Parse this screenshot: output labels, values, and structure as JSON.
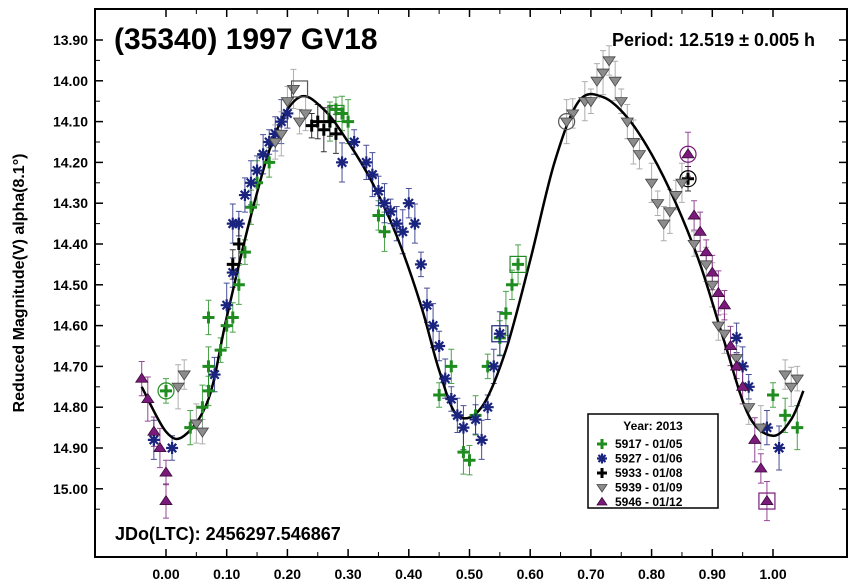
{
  "chart_data": {
    "type": "scatter",
    "title": "(35340) 1997 GV18",
    "period_label": "Period: 12.519 ± 0.005 h",
    "epoch_label": "JDo(LTC): 2456297.546867",
    "ylabel": "Reduced Magnitude(V) alpha(8.1°)",
    "xlabel": "",
    "xlim": [
      -0.05,
      1.06
    ],
    "ylim": [
      15.1,
      13.85
    ],
    "y_inverted": true,
    "grid": false,
    "legend_position": "bottom-right",
    "x_ticks": [
      "0.00",
      "0.10",
      "0.20",
      "0.30",
      "0.40",
      "0.50",
      "0.60",
      "0.70",
      "0.80",
      "0.90",
      "1.00"
    ],
    "y_ticks": [
      "13.90",
      "14.00",
      "14.10",
      "14.20",
      "14.30",
      "14.40",
      "14.50",
      "14.60",
      "14.70",
      "14.80",
      "14.90",
      "15.00"
    ],
    "legend": {
      "title": "Year: 2013",
      "entries": [
        {
          "label": "5917 - 01/05",
          "marker": "plus",
          "color": "#1e8c1e"
        },
        {
          "label": "5927 - 01/06",
          "marker": "asterisk",
          "color": "#1a237e"
        },
        {
          "label": "5933 - 01/08",
          "marker": "plus",
          "color": "#000000"
        },
        {
          "label": "5939 - 01/09",
          "marker": "triangle-down",
          "color": "#8c8c8c"
        },
        {
          "label": "5946 - 01/12",
          "marker": "triangle-up",
          "color": "#7a1a7a"
        }
      ]
    },
    "fit_curve": {
      "x": [
        -0.04,
        0.0,
        0.03,
        0.07,
        0.1,
        0.14,
        0.18,
        0.22,
        0.26,
        0.3,
        0.34,
        0.38,
        0.42,
        0.45,
        0.48,
        0.52,
        0.56,
        0.6,
        0.64,
        0.68,
        0.72,
        0.76,
        0.8,
        0.84,
        0.88,
        0.92,
        0.96,
        1.0,
        1.03,
        1.05
      ],
      "y": [
        14.75,
        14.86,
        14.87,
        14.78,
        14.58,
        14.33,
        14.13,
        14.04,
        14.07,
        14.15,
        14.25,
        14.38,
        14.55,
        14.71,
        14.82,
        14.8,
        14.66,
        14.44,
        14.2,
        14.05,
        14.04,
        14.09,
        14.18,
        14.3,
        14.45,
        14.64,
        14.82,
        14.87,
        14.83,
        14.76
      ]
    },
    "series": [
      {
        "name": "5917 - 01/05",
        "points": [
          {
            "x": 0.0,
            "y": 14.76
          },
          {
            "x": 0.04,
            "y": 14.85
          },
          {
            "x": 0.06,
            "y": 14.8
          },
          {
            "x": 0.07,
            "y": 14.76
          },
          {
            "x": 0.07,
            "y": 14.7
          },
          {
            "x": 0.09,
            "y": 14.66
          },
          {
            "x": 0.07,
            "y": 14.58
          },
          {
            "x": 0.1,
            "y": 14.6
          },
          {
            "x": 0.11,
            "y": 14.58
          },
          {
            "x": 0.12,
            "y": 14.5
          },
          {
            "x": 0.13,
            "y": 14.42
          },
          {
            "x": 0.14,
            "y": 14.31
          },
          {
            "x": 0.15,
            "y": 14.25
          },
          {
            "x": 0.17,
            "y": 14.2
          },
          {
            "x": 0.27,
            "y": 14.1
          },
          {
            "x": 0.28,
            "y": 14.07
          },
          {
            "x": 0.29,
            "y": 14.08
          },
          {
            "x": 0.3,
            "y": 14.1
          },
          {
            "x": 0.35,
            "y": 14.33
          },
          {
            "x": 0.36,
            "y": 14.37
          },
          {
            "x": 0.45,
            "y": 14.77
          },
          {
            "x": 0.47,
            "y": 14.7
          },
          {
            "x": 0.49,
            "y": 14.91
          },
          {
            "x": 0.5,
            "y": 14.93
          },
          {
            "x": 0.51,
            "y": 14.82
          },
          {
            "x": 0.53,
            "y": 14.7
          },
          {
            "x": 0.55,
            "y": 14.63
          },
          {
            "x": 0.56,
            "y": 14.57
          },
          {
            "x": 0.57,
            "y": 14.5
          },
          {
            "x": 0.58,
            "y": 14.45
          },
          {
            "x": 1.0,
            "y": 14.77
          },
          {
            "x": 1.02,
            "y": 14.82
          },
          {
            "x": 1.04,
            "y": 14.85
          }
        ],
        "circled": [
          {
            "x": 0.0,
            "y": 14.76
          }
        ],
        "boxed": [
          {
            "x": 0.28,
            "y": 14.08
          },
          {
            "x": 0.58,
            "y": 14.45
          }
        ]
      },
      {
        "name": "5927 - 01/06",
        "points": [
          {
            "x": -0.02,
            "y": 14.88
          },
          {
            "x": 0.01,
            "y": 14.9
          },
          {
            "x": 0.08,
            "y": 14.72
          },
          {
            "x": 0.1,
            "y": 14.55
          },
          {
            "x": 0.11,
            "y": 14.47
          },
          {
            "x": 0.11,
            "y": 14.35
          },
          {
            "x": 0.12,
            "y": 14.35
          },
          {
            "x": 0.13,
            "y": 14.28
          },
          {
            "x": 0.14,
            "y": 14.25
          },
          {
            "x": 0.15,
            "y": 14.22
          },
          {
            "x": 0.16,
            "y": 14.18
          },
          {
            "x": 0.17,
            "y": 14.15
          },
          {
            "x": 0.18,
            "y": 14.13
          },
          {
            "x": 0.19,
            "y": 14.1
          },
          {
            "x": 0.2,
            "y": 14.08
          },
          {
            "x": 0.29,
            "y": 14.2
          },
          {
            "x": 0.31,
            "y": 14.15
          },
          {
            "x": 0.33,
            "y": 14.2
          },
          {
            "x": 0.34,
            "y": 14.23
          },
          {
            "x": 0.35,
            "y": 14.27
          },
          {
            "x": 0.36,
            "y": 14.3
          },
          {
            "x": 0.37,
            "y": 14.32
          },
          {
            "x": 0.38,
            "y": 14.35
          },
          {
            "x": 0.39,
            "y": 14.37
          },
          {
            "x": 0.4,
            "y": 14.3
          },
          {
            "x": 0.41,
            "y": 14.35
          },
          {
            "x": 0.42,
            "y": 14.45
          },
          {
            "x": 0.43,
            "y": 14.55
          },
          {
            "x": 0.44,
            "y": 14.6
          },
          {
            "x": 0.45,
            "y": 14.65
          },
          {
            "x": 0.46,
            "y": 14.73
          },
          {
            "x": 0.47,
            "y": 14.78
          },
          {
            "x": 0.48,
            "y": 14.82
          },
          {
            "x": 0.49,
            "y": 14.85
          },
          {
            "x": 0.51,
            "y": 14.83
          },
          {
            "x": 0.52,
            "y": 14.88
          },
          {
            "x": 0.53,
            "y": 14.8
          },
          {
            "x": 0.54,
            "y": 14.7
          },
          {
            "x": 0.55,
            "y": 14.62
          },
          {
            "x": 0.94,
            "y": 14.63
          },
          {
            "x": 0.95,
            "y": 14.7
          },
          {
            "x": 0.96,
            "y": 14.75
          },
          {
            "x": 0.99,
            "y": 14.85
          },
          {
            "x": 1.01,
            "y": 14.9
          }
        ],
        "circled": [],
        "boxed": [
          {
            "x": 0.55,
            "y": 14.62
          }
        ]
      },
      {
        "name": "5933 - 01/08",
        "points": [
          {
            "x": 0.11,
            "y": 14.45
          },
          {
            "x": 0.12,
            "y": 14.4
          },
          {
            "x": 0.24,
            "y": 14.11
          },
          {
            "x": 0.25,
            "y": 14.1
          },
          {
            "x": 0.26,
            "y": 14.12
          },
          {
            "x": 0.27,
            "y": 14.1
          },
          {
            "x": 0.28,
            "y": 14.13
          },
          {
            "x": 0.86,
            "y": 14.24
          }
        ],
        "circled": [
          {
            "x": 0.86,
            "y": 14.24
          }
        ],
        "boxed": []
      },
      {
        "name": "5939 - 01/09",
        "points": [
          {
            "x": 0.02,
            "y": 14.75
          },
          {
            "x": 0.03,
            "y": 14.72
          },
          {
            "x": 0.05,
            "y": 14.84
          },
          {
            "x": 0.06,
            "y": 14.86
          },
          {
            "x": 0.18,
            "y": 14.15
          },
          {
            "x": 0.19,
            "y": 14.13
          },
          {
            "x": 0.2,
            "y": 14.05
          },
          {
            "x": 0.21,
            "y": 14.02
          },
          {
            "x": 0.22,
            "y": 14.1
          },
          {
            "x": 0.23,
            "y": 14.08
          },
          {
            "x": 0.66,
            "y": 14.1
          },
          {
            "x": 0.67,
            "y": 14.08
          },
          {
            "x": 0.69,
            "y": 14.05
          },
          {
            "x": 0.7,
            "y": 14.05
          },
          {
            "x": 0.71,
            "y": 14.0
          },
          {
            "x": 0.72,
            "y": 13.98
          },
          {
            "x": 0.73,
            "y": 13.95
          },
          {
            "x": 0.74,
            "y": 14.0
          },
          {
            "x": 0.75,
            "y": 14.05
          },
          {
            "x": 0.76,
            "y": 14.1
          },
          {
            "x": 0.77,
            "y": 14.15
          },
          {
            "x": 0.78,
            "y": 14.18
          },
          {
            "x": 0.8,
            "y": 14.25
          },
          {
            "x": 0.81,
            "y": 14.3
          },
          {
            "x": 0.82,
            "y": 14.35
          },
          {
            "x": 0.83,
            "y": 14.32
          },
          {
            "x": 0.84,
            "y": 14.28
          },
          {
            "x": 0.85,
            "y": 14.25
          },
          {
            "x": 0.87,
            "y": 14.4
          },
          {
            "x": 0.89,
            "y": 14.45
          },
          {
            "x": 0.9,
            "y": 14.5
          },
          {
            "x": 0.91,
            "y": 14.6
          },
          {
            "x": 0.92,
            "y": 14.62
          },
          {
            "x": 0.94,
            "y": 14.68
          },
          {
            "x": 0.96,
            "y": 14.8
          },
          {
            "x": 0.98,
            "y": 14.85
          },
          {
            "x": 1.02,
            "y": 14.72
          },
          {
            "x": 1.03,
            "y": 14.75
          },
          {
            "x": 1.04,
            "y": 14.73
          }
        ],
        "circled": [
          {
            "x": 0.66,
            "y": 14.1
          }
        ],
        "boxed": [
          {
            "x": 0.22,
            "y": 14.02
          }
        ]
      },
      {
        "name": "5946 - 01/12",
        "points": [
          {
            "x": -0.04,
            "y": 14.73
          },
          {
            "x": -0.03,
            "y": 14.78
          },
          {
            "x": -0.02,
            "y": 14.86
          },
          {
            "x": -0.01,
            "y": 14.9
          },
          {
            "x": 0.0,
            "y": 14.96
          },
          {
            "x": 0.0,
            "y": 15.03
          },
          {
            "x": 0.86,
            "y": 14.18
          },
          {
            "x": 0.87,
            "y": 14.33
          },
          {
            "x": 0.88,
            "y": 14.37
          },
          {
            "x": 0.89,
            "y": 14.42
          },
          {
            "x": 0.9,
            "y": 14.47
          },
          {
            "x": 0.91,
            "y": 14.52
          },
          {
            "x": 0.92,
            "y": 14.55
          },
          {
            "x": 0.93,
            "y": 14.65
          },
          {
            "x": 0.94,
            "y": 14.7
          },
          {
            "x": 0.95,
            "y": 14.75
          },
          {
            "x": 0.97,
            "y": 14.88
          },
          {
            "x": 0.98,
            "y": 14.95
          },
          {
            "x": 0.99,
            "y": 15.03
          }
        ],
        "circled": [
          {
            "x": 0.86,
            "y": 14.18
          }
        ],
        "boxed": [
          {
            "x": 0.99,
            "y": 15.03
          }
        ]
      }
    ]
  }
}
